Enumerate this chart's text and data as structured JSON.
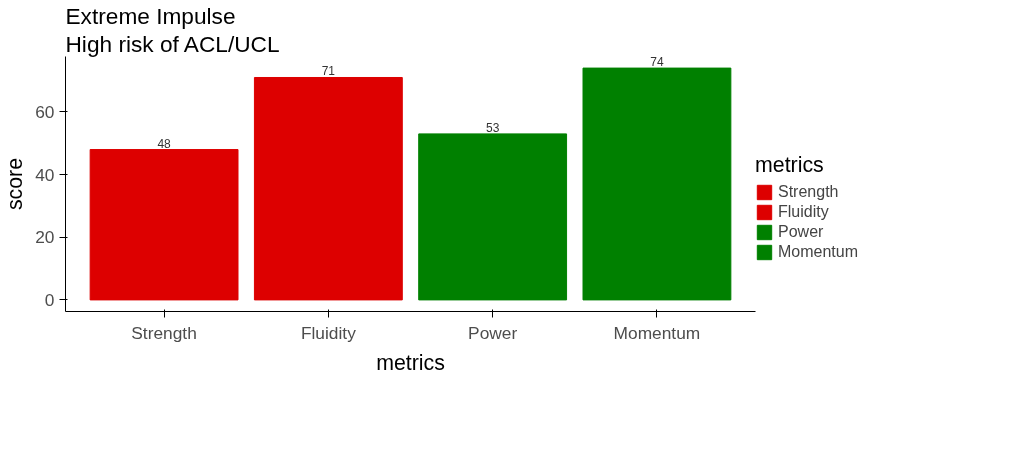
{
  "chart_data": {
    "type": "bar",
    "title": "Extreme Impulse",
    "subtitle": "High risk of ACL/UCL",
    "xlabel": "metrics",
    "ylabel": "score",
    "legend_title": "metrics",
    "categories": [
      "Strength",
      "Fluidity",
      "Power",
      "Momentum"
    ],
    "stacked": true,
    "series": [
      {
        "name": "Strength",
        "color": "#dd0000",
        "values": [
          48,
          null,
          null,
          null
        ]
      },
      {
        "name": "Fluidity",
        "color": "#dd0000",
        "values": [
          null,
          71,
          null,
          null
        ]
      },
      {
        "name": "Power",
        "color": "#008000",
        "values": [
          null,
          null,
          53,
          null
        ]
      },
      {
        "name": "Momentum",
        "color": "#008000",
        "values": [
          null,
          null,
          null,
          74
        ]
      }
    ],
    "ylim": [
      -3.7,
      77.7
    ],
    "yticks": [
      0,
      20,
      40,
      60
    ],
    "grid": false,
    "legend": "right",
    "data_labels": true
  }
}
